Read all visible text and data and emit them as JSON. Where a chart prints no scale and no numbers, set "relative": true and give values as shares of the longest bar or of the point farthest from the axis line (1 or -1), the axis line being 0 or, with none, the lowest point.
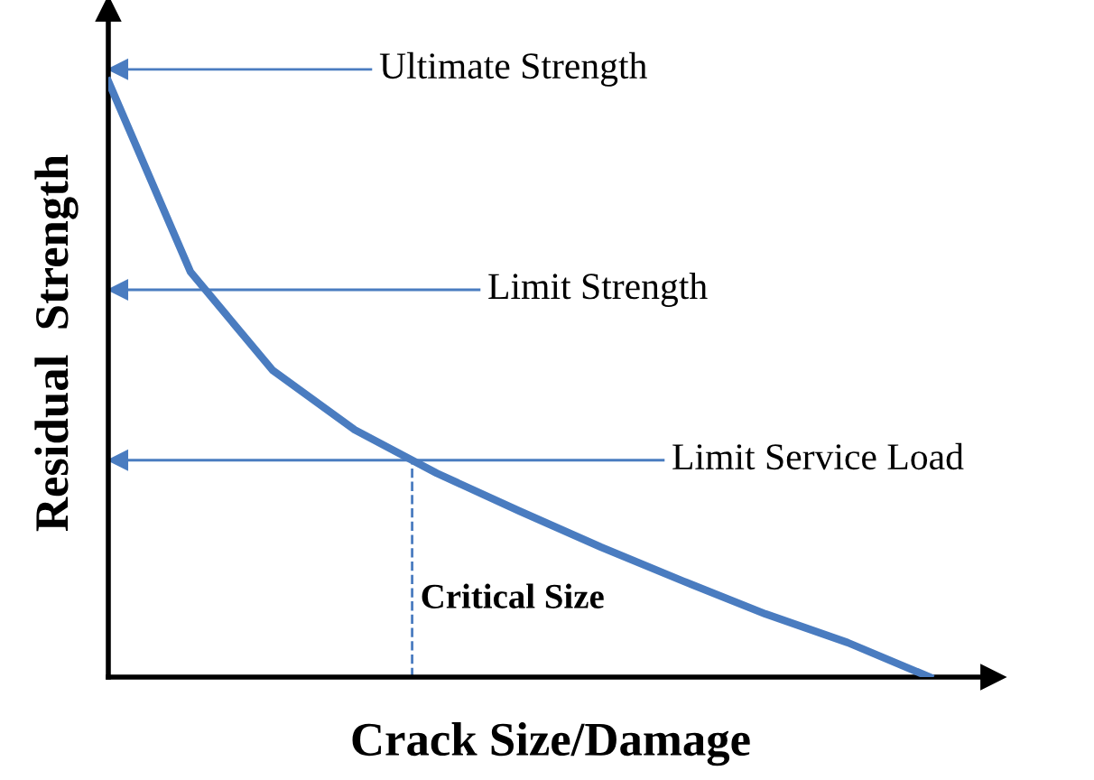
{
  "chart_data": {
    "type": "line",
    "xlabel": "Crack Size/Damage",
    "ylabel": "Residual  Strength",
    "relative": true,
    "categories": [
      null,
      null,
      null,
      null,
      null,
      null,
      null,
      null,
      null,
      null,
      null
    ],
    "series": [
      {
        "color": "#4a7cc0",
        "values": [
          1.0,
          0.68,
          0.515,
          0.415,
          0.342,
          0.279,
          0.218,
          0.161,
          0.106,
          0.058,
          0.0
        ]
      }
    ],
    "ref_lines": [
      {
        "axis": "y",
        "value": 1.02,
        "label": "Ultimate Strength",
        "color": "#4a7cc0"
      },
      {
        "axis": "y",
        "value": 0.65,
        "label": "Limit Strength",
        "color": "#4a7cc0"
      },
      {
        "axis": "y",
        "value": 0.364,
        "label": "Limit Service Load",
        "color": "#4a7cc0"
      }
    ],
    "annotations": [
      "Critical Size"
    ],
    "legend": false,
    "tick_labels": false,
    "marker": "none",
    "line_style": "solid"
  }
}
